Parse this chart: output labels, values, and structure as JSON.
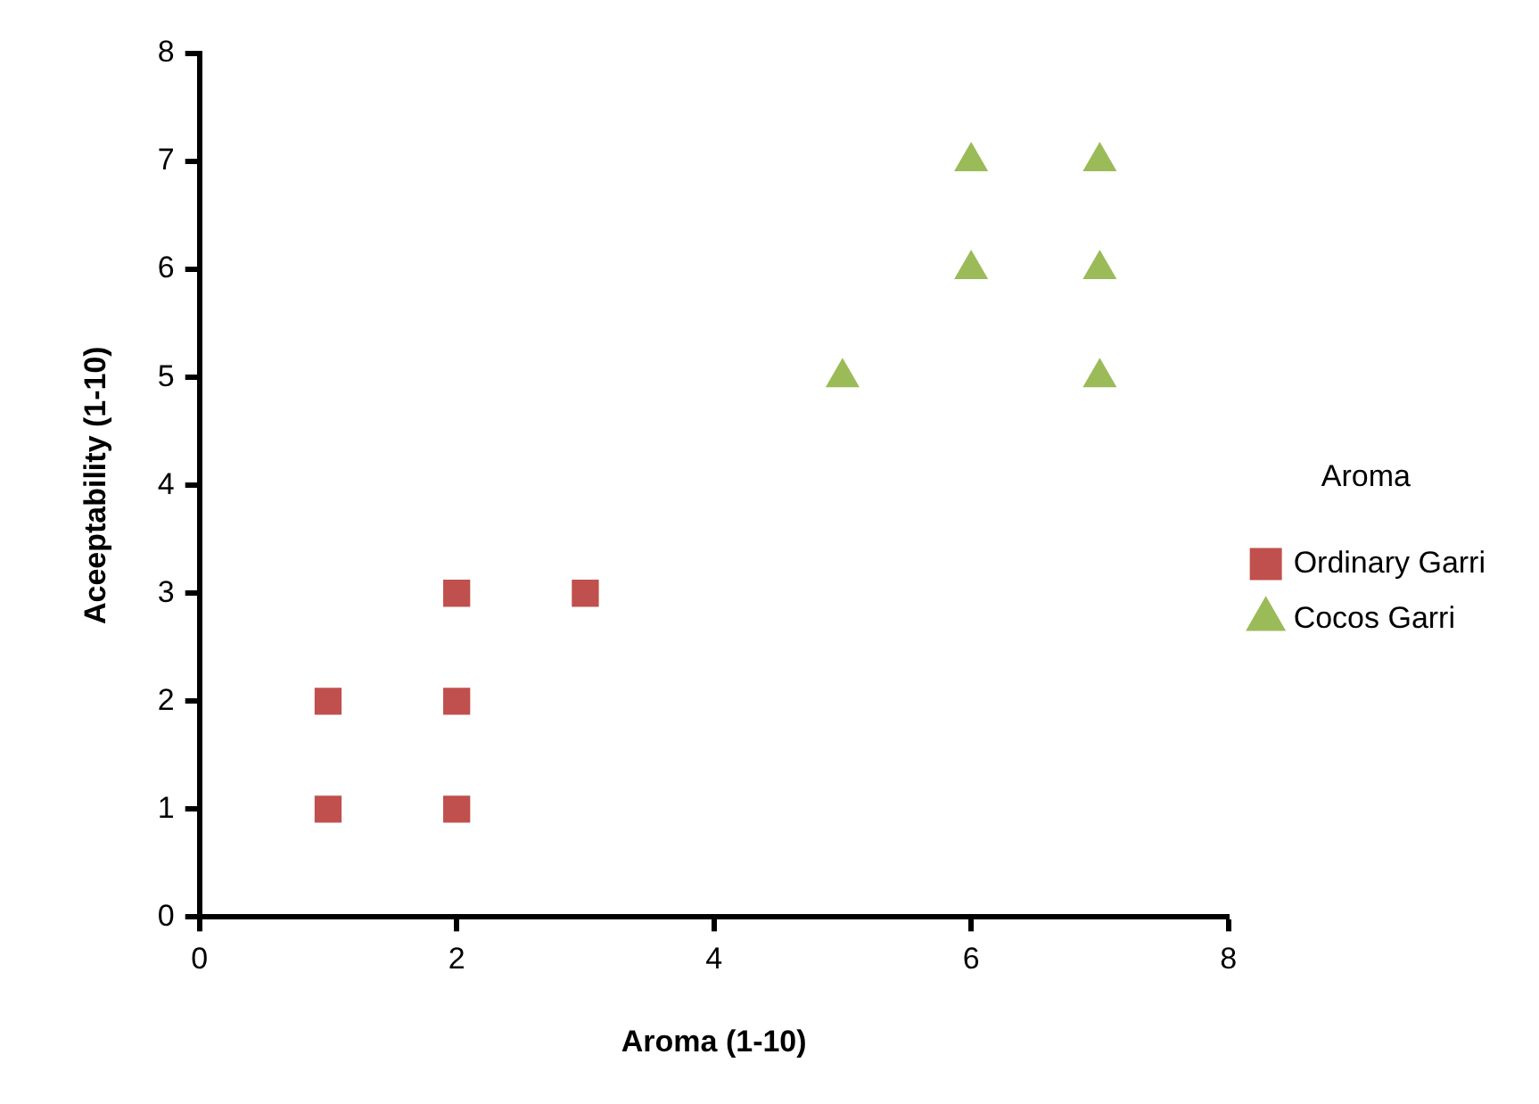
{
  "chart_data": {
    "type": "scatter",
    "xlabel": "Aroma (1-10)",
    "ylabel": "Aceeptability (1-10)",
    "legend_title": "Aroma",
    "legend": "right",
    "grid": false,
    "xlim": [
      0,
      8
    ],
    "xticks": [
      0,
      2,
      4,
      6,
      8
    ],
    "ylim": [
      0,
      8
    ],
    "yticks": [
      0,
      1,
      2,
      3,
      4,
      5,
      6,
      7,
      8
    ],
    "series": [
      {
        "name": "Ordinary Garri",
        "color": "#c0504d",
        "marker": "square",
        "x": [
          1,
          1,
          2,
          2,
          2,
          3
        ],
        "values": [
          1,
          2,
          1,
          2,
          3,
          3
        ]
      },
      {
        "name": "Cocos Garri",
        "color": "#9bbb59",
        "marker": "triangle",
        "x": [
          5,
          6,
          6,
          7,
          7,
          7
        ],
        "values": [
          5,
          6,
          7,
          5,
          6,
          7
        ]
      }
    ]
  }
}
